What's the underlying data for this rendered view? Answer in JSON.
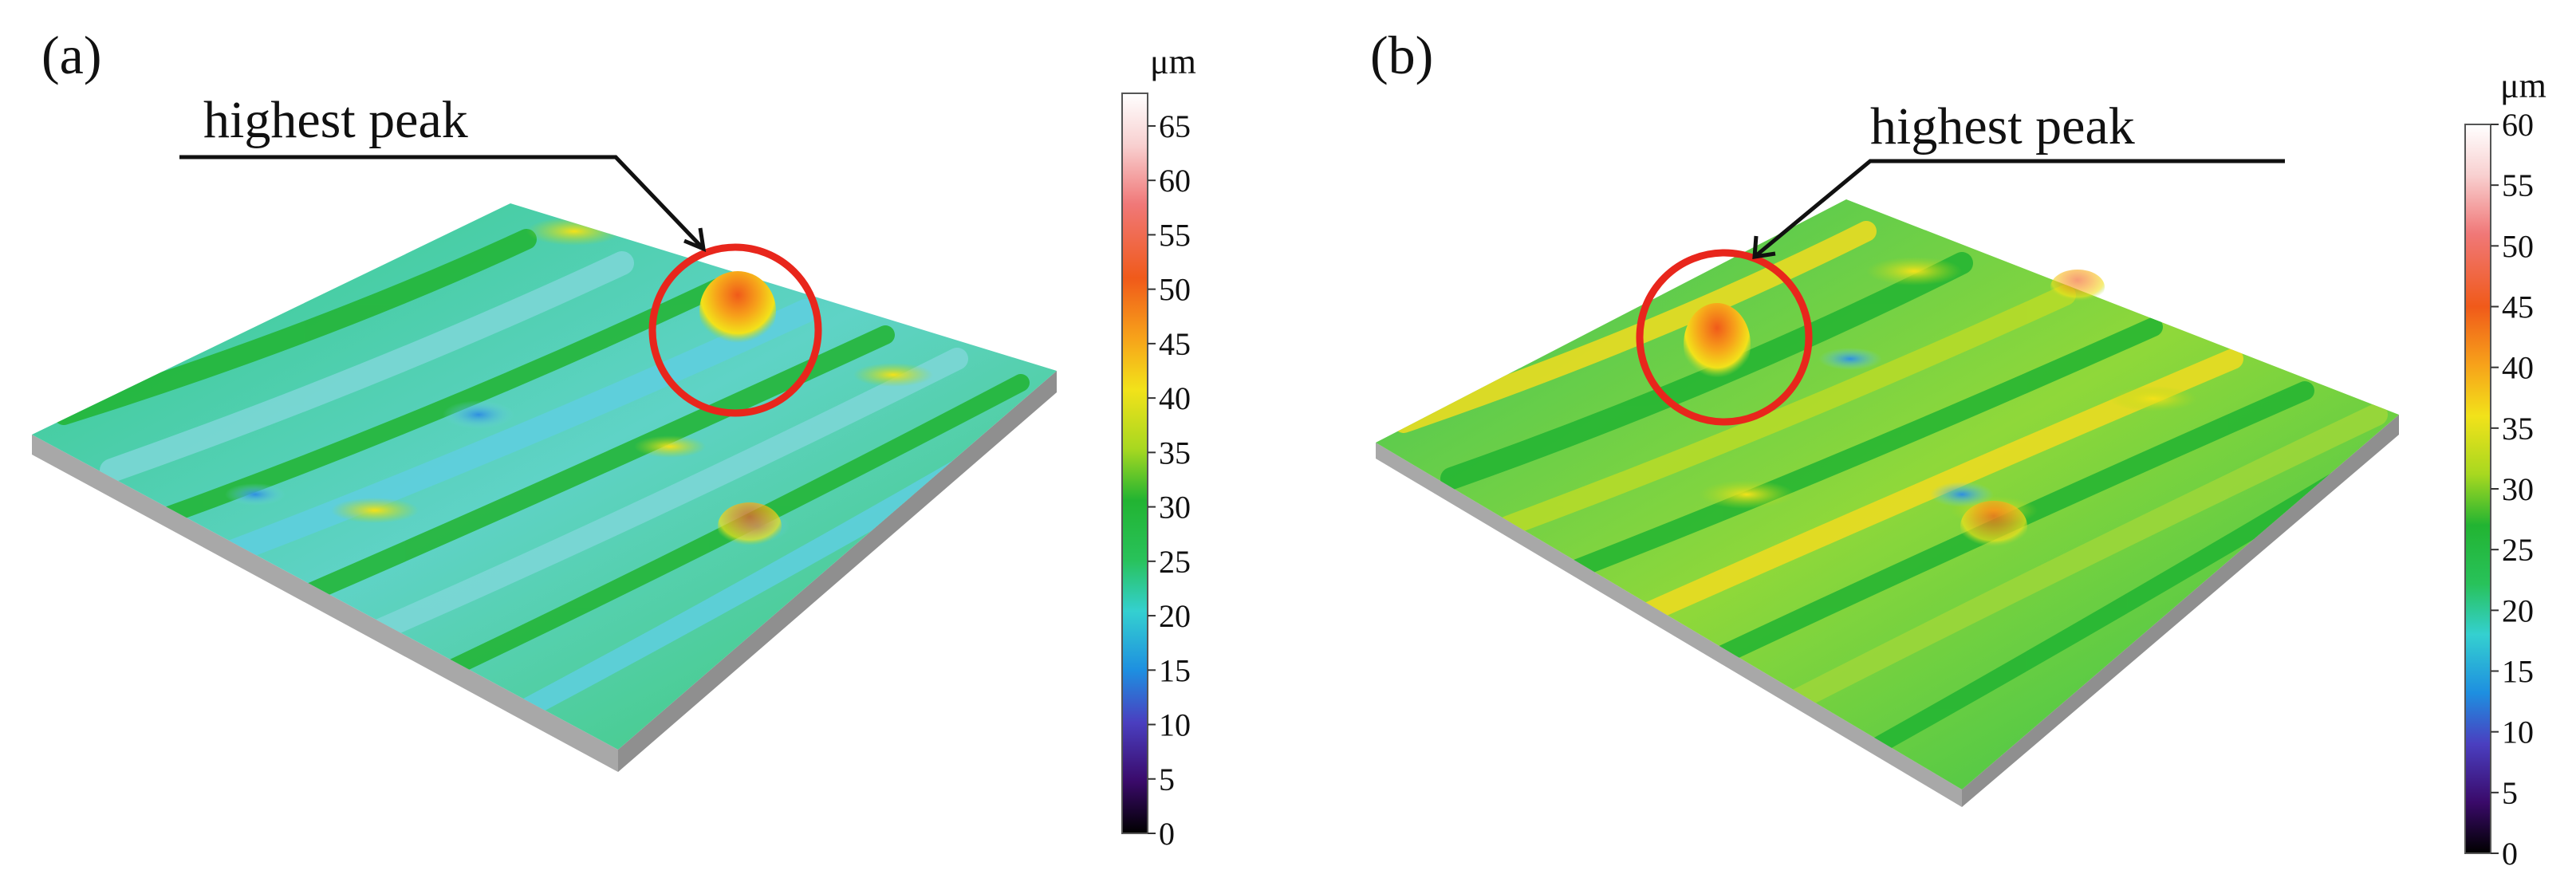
{
  "figure": {
    "panels": [
      {
        "id": "a",
        "label": "(a)",
        "annotation": "highest peak",
        "colorbar": {
          "unit": "μm",
          "ticks": [
            "0",
            "5",
            "10",
            "15",
            "20",
            "25",
            "30",
            "35",
            "40",
            "45",
            "50",
            "55",
            "60",
            "65"
          ],
          "max": 68
        }
      },
      {
        "id": "b",
        "label": "(b)",
        "annotation": "highest peak",
        "colorbar": {
          "unit": "μm",
          "ticks": [
            "0",
            "5",
            "10",
            "15",
            "20",
            "25",
            "30",
            "35",
            "40",
            "45",
            "50",
            "55",
            "60"
          ],
          "max": 60
        }
      }
    ],
    "colormap": [
      "#000000",
      "#3a0a6a",
      "#4a3fc0",
      "#1e8fe0",
      "#34d0d0",
      "#28c25a",
      "#22b432",
      "#a8d820",
      "#f2e21a",
      "#f7a21a",
      "#f05a1a",
      "#f07878",
      "#f8d0d0",
      "#ffffff"
    ],
    "surface_colors": {
      "side_wall": "#a6a6a6",
      "marker_circle": "#e8261c",
      "leader_line": "#111111"
    }
  }
}
